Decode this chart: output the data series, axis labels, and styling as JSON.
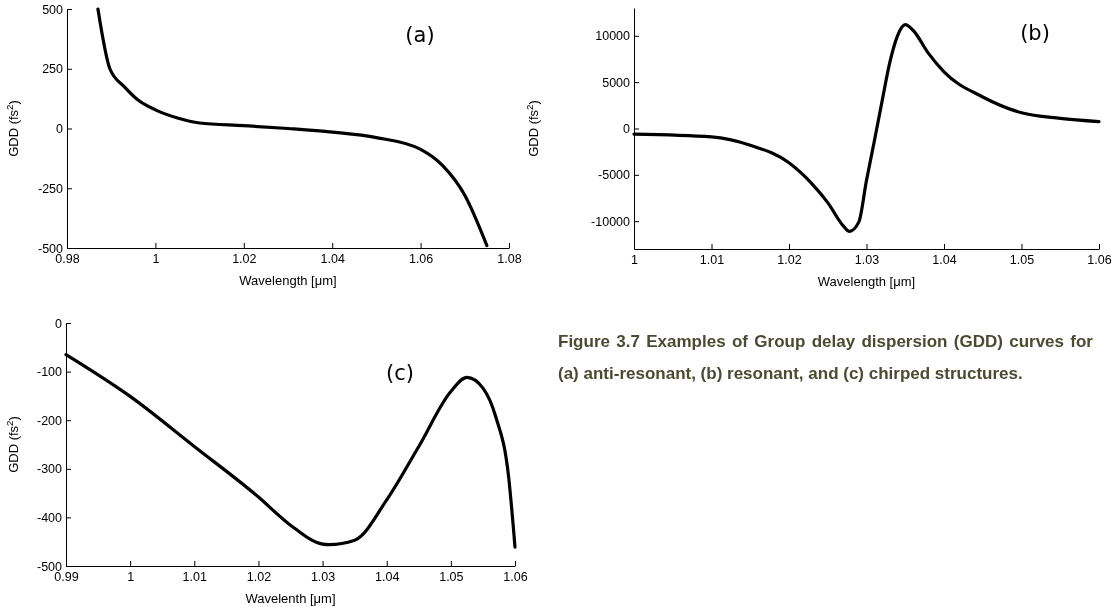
{
  "chart_data": [
    {
      "type": "line",
      "xlabel": "Wavelength [μm]",
      "ylabel": "GDD   (fs$^{2}$)",
      "xlim": [
        0.98,
        1.08
      ],
      "xticks": [
        0.98,
        1,
        1.02,
        1.04,
        1.06,
        1.08
      ],
      "ylim": [
        -500,
        500
      ],
      "yticks": [
        -500,
        -250,
        0,
        250,
        500
      ],
      "annotations": [
        "(a)"
      ],
      "color": "#000000",
      "x": [
        0.987,
        0.9897,
        0.993,
        0.996,
        1.0,
        1.005,
        1.01,
        1.02,
        1.03,
        1.04,
        1.05,
        1.06,
        1.065,
        1.07,
        1.075
      ],
      "values": [
        500,
        250,
        174,
        120,
        78,
        44,
        23,
        12,
        0,
        -15,
        -38,
        -87,
        -155,
        -279,
        -490
      ]
    },
    {
      "type": "line",
      "xlabel": "Wavelength [μm]",
      "ylabel": "GDD   (fs$^{2}$)",
      "xlim": [
        1,
        1.06
      ],
      "xticks": [
        1,
        1.01,
        1.02,
        1.03,
        1.04,
        1.05,
        1.06
      ],
      "ylim": [
        -13000,
        13000
      ],
      "yticks": [
        -10000,
        -5000,
        0,
        5000,
        10000
      ],
      "annotations": [
        "(b)"
      ],
      "color": "#000000",
      "x": [
        1.0,
        1.01,
        1.015,
        1.02,
        1.023,
        1.025,
        1.027,
        1.0278,
        1.029,
        1.03,
        1.031,
        1.032,
        1.033,
        1.034,
        1.035,
        1.036,
        1.038,
        1.04,
        1.045,
        1.05,
        1.055,
        1.06
      ],
      "values": [
        -600,
        -900,
        -1800,
        -3700,
        -6000,
        -8000,
        -10500,
        -11100,
        -10100,
        -5600,
        -1400,
        2900,
        7100,
        10000,
        11200,
        10600,
        8100,
        6100,
        3400,
        1700,
        1100,
        750
      ]
    },
    {
      "type": "line",
      "xlabel": "Wavelenth [μm]",
      "ylabel": "GDD   (fs$^{2}$)",
      "xlim": [
        0.99,
        1.06
      ],
      "xticks": [
        0.99,
        1,
        1.01,
        1.02,
        1.03,
        1.04,
        1.05,
        1.06
      ],
      "ylim": [
        -500,
        0
      ],
      "yticks": [
        -500,
        -400,
        -300,
        -200,
        -100,
        0
      ],
      "annotations": [
        "(c)"
      ],
      "color": "#000000",
      "x": [
        0.99,
        1.0,
        1.01,
        1.02,
        1.025,
        1.03,
        1.031,
        1.035,
        1.04,
        1.045,
        1.05,
        1.0525,
        1.055,
        1.057,
        1.059,
        1.06
      ],
      "values": [
        -65,
        -151,
        -254,
        -358,
        -416,
        -455,
        -456,
        -447,
        -364,
        -254,
        -141,
        -112,
        -134,
        -193,
        -316,
        -461
      ]
    },
    {
      "type": "other",
      "annotations": [
        "Figure 3.7 Examples of  Group delay dispersion (GDD)  curves for (a) anti-resonant, (b) resonant, and (c) chirped structures."
      ]
    }
  ]
}
